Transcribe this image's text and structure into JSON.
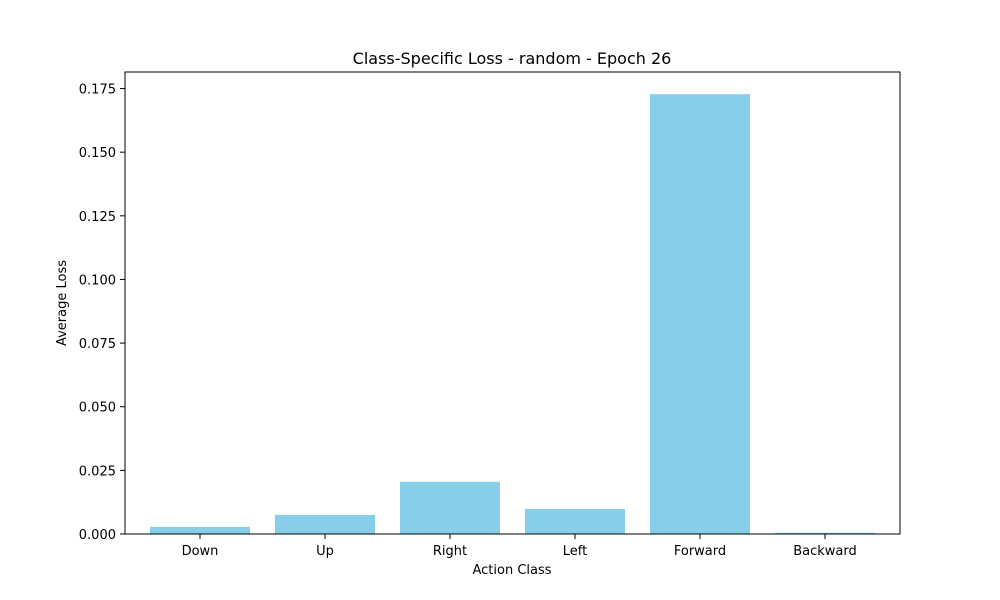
{
  "chart_data": {
    "type": "bar",
    "title": "Class-Specific Loss - random - Epoch 26",
    "xlabel": "Action Class",
    "ylabel": "Average Loss",
    "categories": [
      "Down",
      "Up",
      "Right",
      "Left",
      "Forward",
      "Backward"
    ],
    "values": [
      0.0028,
      0.0075,
      0.0205,
      0.0098,
      0.1728,
      0.0005
    ],
    "ylim": [
      0,
      0.1815
    ],
    "yticks": [
      "0.000",
      "0.025",
      "0.050",
      "0.075",
      "0.100",
      "0.125",
      "0.150",
      "0.175"
    ],
    "bar_color": "#87CEEB",
    "grid": false,
    "legend": "none"
  }
}
